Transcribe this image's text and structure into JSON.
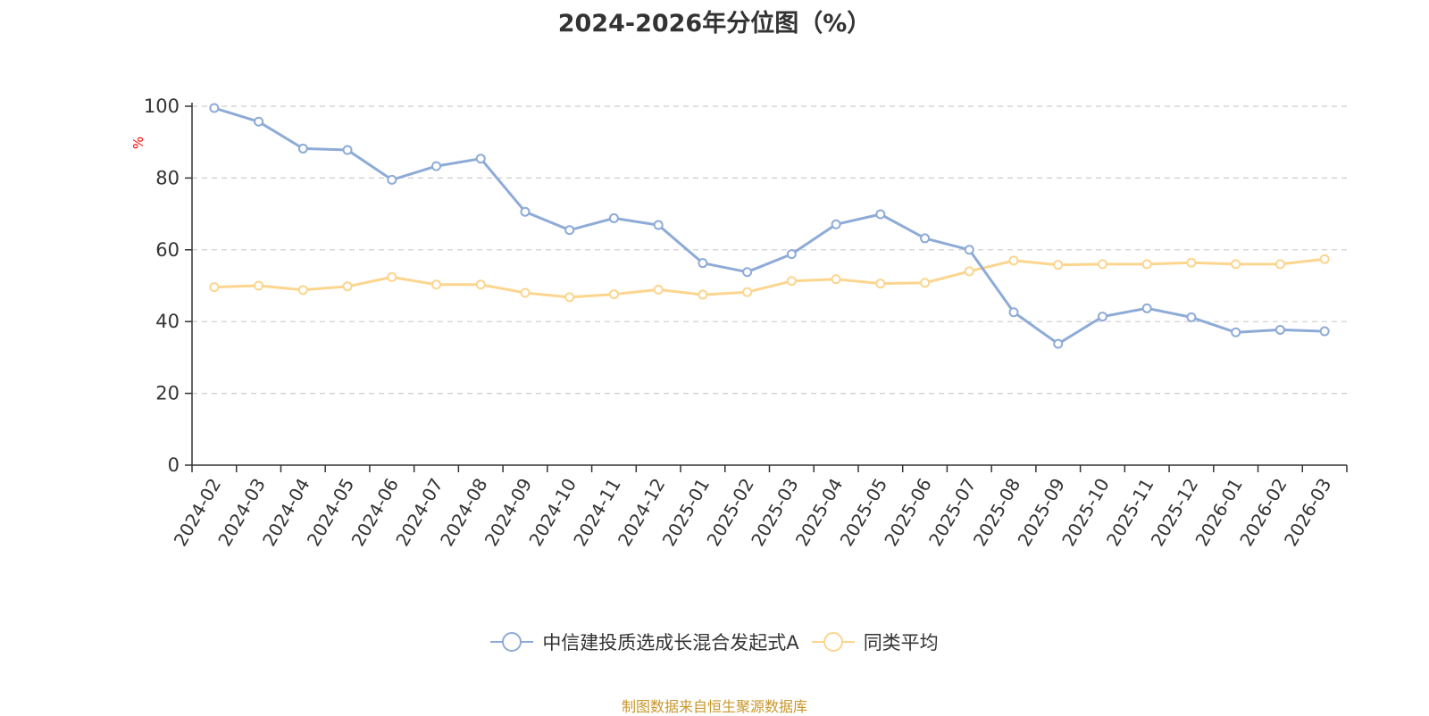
{
  "colors": {
    "series1": "#8eabd7",
    "series2": "#fcd58e",
    "grid": "#cccccc",
    "axis": "#333333",
    "ylabel": "#ff0000",
    "source": "#c8972c"
  },
  "chart_data": {
    "type": "line",
    "title": "2024-2026年分位图（%）",
    "ylabel": "%",
    "xlabel": "",
    "ylim": [
      0,
      100
    ],
    "yticks": [
      0,
      20,
      40,
      60,
      80,
      100
    ],
    "grid": true,
    "legend_position": "bottom",
    "categories": [
      "2024-02",
      "2024-03",
      "2024-04",
      "2024-05",
      "2024-06",
      "2024-07",
      "2024-08",
      "2024-09",
      "2024-10",
      "2024-11",
      "2024-12",
      "2025-01",
      "2025-02",
      "2025-03",
      "2025-04",
      "2025-05",
      "2025-06",
      "2025-07",
      "2025-08",
      "2025-09",
      "2025-10",
      "2025-11",
      "2025-12",
      "2026-01",
      "2026-02",
      "2026-03"
    ],
    "series": [
      {
        "name": "中信建投质选成长混合发起式A",
        "values": [
          99.5,
          95.7,
          88.2,
          87.8,
          79.5,
          83.3,
          85.4,
          70.6,
          65.5,
          68.8,
          66.9,
          56.3,
          53.8,
          58.8,
          67.1,
          69.9,
          63.2,
          60.0,
          42.6,
          33.8,
          41.4,
          43.7,
          41.2,
          37.0,
          37.7,
          37.3
        ]
      },
      {
        "name": "同类平均",
        "values": [
          49.6,
          50.0,
          48.8,
          49.8,
          52.4,
          50.3,
          50.3,
          48.0,
          46.8,
          47.6,
          48.9,
          47.5,
          48.2,
          51.3,
          51.8,
          50.6,
          50.8,
          54.0,
          57.0,
          55.8,
          56.0,
          56.0,
          56.4,
          56.0,
          56.0,
          57.4
        ]
      }
    ]
  },
  "source_note": "制图数据来自恒生聚源数据库"
}
